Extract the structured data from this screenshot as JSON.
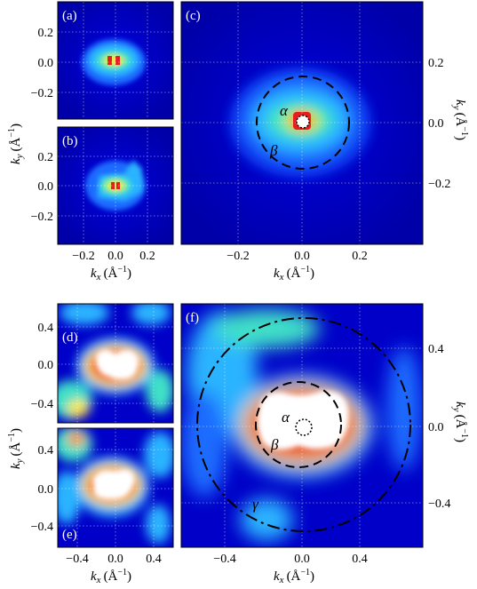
{
  "figure": {
    "panel_labels": [
      "(a)",
      "(b)",
      "(c)",
      "(d)",
      "(e)",
      "(f)"
    ],
    "axes": {
      "kx_label": "k",
      "kx_sub": "x",
      "ky_label": "k",
      "ky_sub": "y",
      "unit": "(Å",
      "unit_exp": "−1",
      "unit_close": ")"
    },
    "annotations": {
      "alpha": "α",
      "beta": "β",
      "gamma": "γ"
    },
    "colormap": [
      "#000080",
      "#0000d8",
      "#1e6cff",
      "#2ab4ff",
      "#3fe0c8",
      "#b4f05a",
      "#ffe63c",
      "#ff8c28",
      "#e61e1e",
      "#ffffff"
    ]
  },
  "chart_data": [
    {
      "panel": "(a)",
      "type": "heatmap",
      "xlim": [
        -0.35,
        0.35
      ],
      "ylim": [
        -0.38,
        0.38
      ],
      "xticks": [
        -0.2,
        0.0,
        0.2
      ],
      "yticks": [
        "0.2",
        "0.0",
        "−0.2"
      ],
      "features": [
        {
          "shape": "blob",
          "center": [
            0.0,
            0.0
          ],
          "peak": "red"
        }
      ]
    },
    {
      "panel": "(b)",
      "type": "heatmap",
      "xlim": [
        -0.35,
        0.35
      ],
      "ylim": [
        -0.38,
        0.38
      ],
      "xticks": [
        "−0.2",
        "0.0",
        "0.2"
      ],
      "yticks": [
        "0.2",
        "0.0",
        "−0.2"
      ],
      "features": [
        {
          "shape": "blob",
          "center": [
            0.0,
            0.0
          ],
          "peak": "red"
        }
      ]
    },
    {
      "panel": "(c)",
      "type": "heatmap",
      "xlim": [
        -0.38,
        0.38
      ],
      "ylim": [
        -0.38,
        0.38
      ],
      "xticks": [
        "−0.2",
        "0.0",
        "0.2"
      ],
      "yticks": [
        "0.2",
        "0.0",
        "−0.2"
      ],
      "contours": [
        {
          "label": "α",
          "style": "dotted",
          "radius": 0.02
        },
        {
          "label": "β",
          "style": "dashed",
          "radius": 0.16
        }
      ]
    },
    {
      "panel": "(d)",
      "type": "heatmap",
      "xlim": [
        -0.6,
        0.6
      ],
      "ylim": [
        -0.58,
        0.58
      ],
      "yticks": [
        "0.4",
        "0.0",
        "−0.4"
      ]
    },
    {
      "panel": "(e)",
      "type": "heatmap",
      "xlim": [
        -0.6,
        0.6
      ],
      "ylim": [
        -0.58,
        0.58
      ],
      "xticks": [
        "−0.4",
        "0.0",
        "0.4"
      ],
      "yticks": [
        "0.4",
        "0.0",
        "−0.4"
      ]
    },
    {
      "panel": "(f)",
      "type": "heatmap",
      "xlim": [
        -0.65,
        0.65
      ],
      "ylim": [
        -0.62,
        0.62
      ],
      "xticks": [
        "−0.4",
        "0.0",
        "0.4"
      ],
      "yticks": [
        "0.4",
        "0.0",
        "−0.4"
      ],
      "contours": [
        {
          "label": "α",
          "style": "dotted",
          "radius": 0.02
        },
        {
          "label": "β",
          "style": "dashed",
          "radius": 0.25
        },
        {
          "label": "γ",
          "style": "dash-dot",
          "radius": 0.58
        }
      ]
    }
  ]
}
